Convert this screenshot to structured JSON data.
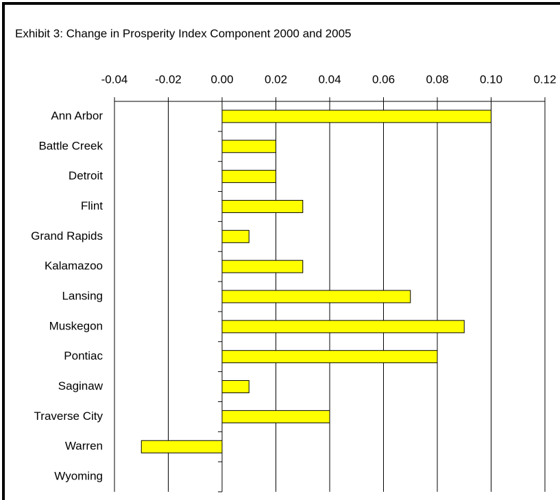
{
  "chart_data": {
    "type": "bar",
    "orientation": "horizontal",
    "title": "Exhibit 3: Change in Prosperity Index Component 2000 and 2005",
    "categories": [
      "Ann Arbor",
      "Battle Creek",
      "Detroit",
      "Flint",
      "Grand Rapids",
      "Kalamazoo",
      "Lansing",
      "Muskegon",
      "Pontiac",
      "Saginaw",
      "Traverse City",
      "Warren",
      "Wyoming"
    ],
    "values": [
      0.1,
      0.02,
      0.02,
      0.03,
      0.01,
      0.03,
      0.07,
      0.09,
      0.08,
      0.01,
      0.04,
      -0.03,
      0
    ],
    "color": "#ffff00",
    "xlim": [
      -0.04,
      0.12
    ],
    "xticks": [
      -0.04,
      -0.02,
      {
        "value": 0,
        "label": "0.00"
      },
      0.02,
      0.04,
      0.06,
      0.08,
      {
        "value": 0.1,
        "label": "0.10"
      },
      0.12
    ],
    "grid": true
  }
}
